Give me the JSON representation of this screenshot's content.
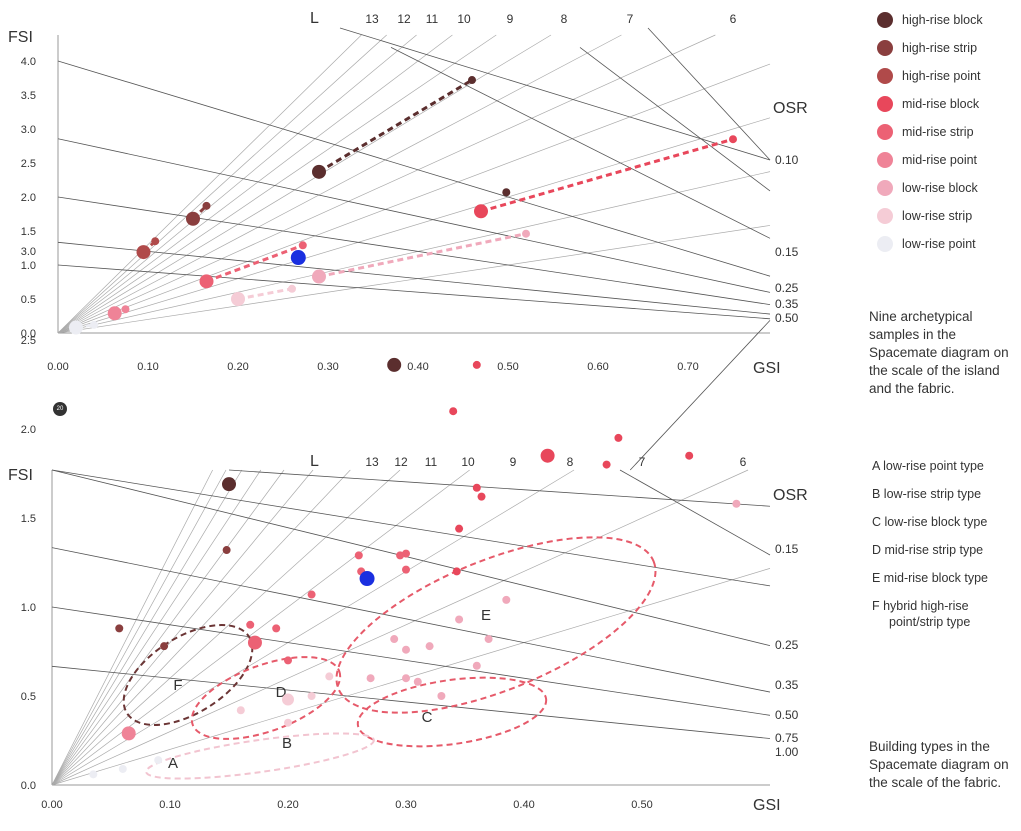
{
  "page_badge": "20",
  "top_note": "Nine archetypical samples in the Spacemate diagram on the scale of the island and the fabric.",
  "bottom_note": "Building types in the Spacemate diagram on the scale of the fabric.",
  "legend": [
    {
      "label": "high-rise block",
      "color": "#5b2e2e"
    },
    {
      "label": "high-rise strip",
      "color": "#8a3e3e"
    },
    {
      "label": "high-rise point",
      "color": "#b04a4a"
    },
    {
      "label": "mid-rise block",
      "color": "#e8475b"
    },
    {
      "label": "mid-rise strip",
      "color": "#ec6174"
    },
    {
      "label": "mid-rise point",
      "color": "#ef8397"
    },
    {
      "label": "low-rise block",
      "color": "#f0a9bb"
    },
    {
      "label": "low-rise strip",
      "color": "#f5ccd6"
    },
    {
      "label": "low-rise point",
      "color": "#ecedf3"
    }
  ],
  "type_legend": [
    "A  low-rise point type",
    "B  low-rise strip type",
    "C  low-rise block type",
    "D  mid-rise strip type",
    "E  mid-rise block type",
    "F  hybrid high-rise point/strip type"
  ],
  "chart_data": [
    {
      "type": "scatter",
      "title": "",
      "xlabel": "GSI",
      "ylabel": "FSI",
      "xlim": [
        0,
        0.8
      ],
      "ylim": [
        0,
        4.2
      ],
      "x_ticks": [
        "0.00",
        "0.10",
        "0.20",
        "0.30",
        "0.40",
        "0.50",
        "0.60",
        "0.70"
      ],
      "y_ticks": [
        "0.0",
        "0.5",
        "1.0",
        "1.5",
        "2.0",
        "2.5",
        "3.0",
        "3.5",
        "4.0"
      ],
      "L_label": "L",
      "L_values": [
        "13",
        "12",
        "11",
        "10",
        "9",
        "8",
        "7",
        "6"
      ],
      "OSR_label": "OSR",
      "OSR_values": [
        "0.10",
        "0.15",
        "0.25",
        "0.35",
        "0.50"
      ],
      "series": [
        {
          "name": "high-rise block",
          "points": [
            [
              0.29,
              2.37
            ],
            [
              0.46,
              3.72
            ]
          ]
        },
        {
          "name": "high-rise strip",
          "points": [
            [
              0.15,
              1.68
            ],
            [
              0.165,
              1.87
            ]
          ]
        },
        {
          "name": "high-rise point",
          "points": [
            [
              0.095,
              1.19
            ],
            [
              0.108,
              1.35
            ]
          ]
        },
        {
          "name": "mid-rise block",
          "points": [
            [
              0.47,
              1.79
            ],
            [
              0.75,
              2.85
            ]
          ]
        },
        {
          "name": "mid-rise strip",
          "points": [
            [
              0.165,
              0.76
            ],
            [
              0.272,
              1.29
            ]
          ]
        },
        {
          "name": "mid-rise point",
          "points": [
            [
              0.063,
              0.29
            ],
            [
              0.075,
              0.35
            ]
          ]
        },
        {
          "name": "low-rise block",
          "points": [
            [
              0.29,
              0.83
            ],
            [
              0.52,
              1.46
            ]
          ]
        },
        {
          "name": "low-rise strip",
          "points": [
            [
              0.2,
              0.5
            ],
            [
              0.26,
              0.65
            ]
          ]
        },
        {
          "name": "low-rise point",
          "points": [
            [
              0.02,
              0.08
            ],
            [
              0.04,
              0.12
            ]
          ]
        }
      ],
      "highlight": [
        [
          0.267,
          1.11
        ]
      ]
    },
    {
      "type": "scatter",
      "title": "",
      "xlabel": "GSI",
      "ylabel": "FSI",
      "xlim": [
        0,
        0.6
      ],
      "ylim": [
        0,
        3.4
      ],
      "x_ticks": [
        "0.00",
        "0.10",
        "0.20",
        "0.30",
        "0.40",
        "0.50"
      ],
      "y_ticks": [
        "0.0",
        "0.5",
        "1.0",
        "1.5",
        "2.0",
        "2.5",
        "3.0"
      ],
      "L_label": "L",
      "L_values": [
        "13",
        "12",
        "11",
        "10",
        "9",
        "8",
        "7",
        "6"
      ],
      "OSR_label": "OSR",
      "OSR_values": [
        "0.15",
        "0.25",
        "0.35",
        "0.50",
        "0.75",
        "1.00"
      ],
      "groups": [
        "A",
        "B",
        "C",
        "D",
        "E",
        "F"
      ],
      "points": [
        {
          "x": 0.385,
          "y": 3.33,
          "cat": "high-rise block",
          "r": 4
        },
        {
          "x": 0.29,
          "y": 2.36,
          "cat": "high-rise block",
          "r": 7
        },
        {
          "x": 0.15,
          "y": 1.69,
          "cat": "high-rise block",
          "r": 7
        },
        {
          "x": 0.148,
          "y": 1.32,
          "cat": "high-rise strip",
          "r": 4
        },
        {
          "x": 0.095,
          "y": 0.78,
          "cat": "high-rise strip",
          "r": 4
        },
        {
          "x": 0.057,
          "y": 0.88,
          "cat": "high-rise strip",
          "r": 4
        },
        {
          "x": 0.065,
          "y": 0.29,
          "cat": "mid-rise point",
          "r": 7
        },
        {
          "x": 0.54,
          "y": 1.85,
          "cat": "mid-rise block",
          "r": 4
        },
        {
          "x": 0.48,
          "y": 1.95,
          "cat": "mid-rise block",
          "r": 4
        },
        {
          "x": 0.47,
          "y": 1.8,
          "cat": "mid-rise block",
          "r": 4
        },
        {
          "x": 0.42,
          "y": 1.85,
          "cat": "mid-rise block",
          "r": 7
        },
        {
          "x": 0.36,
          "y": 2.36,
          "cat": "mid-rise block",
          "r": 4
        },
        {
          "x": 0.34,
          "y": 2.1,
          "cat": "mid-rise block",
          "r": 4
        },
        {
          "x": 0.36,
          "y": 1.67,
          "cat": "mid-rise block",
          "r": 4
        },
        {
          "x": 0.364,
          "y": 1.62,
          "cat": "mid-rise block",
          "r": 4
        },
        {
          "x": 0.345,
          "y": 1.44,
          "cat": "mid-rise block",
          "r": 4
        },
        {
          "x": 0.343,
          "y": 1.2,
          "cat": "mid-rise block",
          "r": 4
        },
        {
          "x": 0.3,
          "y": 1.3,
          "cat": "mid-rise strip",
          "r": 4
        },
        {
          "x": 0.295,
          "y": 1.29,
          "cat": "mid-rise strip",
          "r": 4
        },
        {
          "x": 0.3,
          "y": 1.21,
          "cat": "mid-rise strip",
          "r": 4
        },
        {
          "x": 0.26,
          "y": 1.29,
          "cat": "mid-rise strip",
          "r": 4
        },
        {
          "x": 0.262,
          "y": 1.2,
          "cat": "mid-rise strip",
          "r": 4
        },
        {
          "x": 0.22,
          "y": 1.07,
          "cat": "mid-rise strip",
          "r": 4
        },
        {
          "x": 0.19,
          "y": 0.88,
          "cat": "mid-rise strip",
          "r": 4
        },
        {
          "x": 0.168,
          "y": 0.9,
          "cat": "mid-rise strip",
          "r": 4
        },
        {
          "x": 0.172,
          "y": 0.8,
          "cat": "mid-rise strip",
          "r": 7
        },
        {
          "x": 0.2,
          "y": 0.7,
          "cat": "mid-rise strip",
          "r": 4
        },
        {
          "x": 0.58,
          "y": 1.58,
          "cat": "low-rise block",
          "r": 4
        },
        {
          "x": 0.385,
          "y": 1.04,
          "cat": "low-rise block",
          "r": 4
        },
        {
          "x": 0.345,
          "y": 0.93,
          "cat": "low-rise block",
          "r": 4
        },
        {
          "x": 0.37,
          "y": 0.82,
          "cat": "low-rise block",
          "r": 4
        },
        {
          "x": 0.29,
          "y": 0.82,
          "cat": "low-rise block",
          "r": 4
        },
        {
          "x": 0.3,
          "y": 0.76,
          "cat": "low-rise block",
          "r": 4
        },
        {
          "x": 0.32,
          "y": 0.78,
          "cat": "low-rise block",
          "r": 4
        },
        {
          "x": 0.36,
          "y": 0.67,
          "cat": "low-rise block",
          "r": 4
        },
        {
          "x": 0.3,
          "y": 0.6,
          "cat": "low-rise block",
          "r": 4
        },
        {
          "x": 0.31,
          "y": 0.58,
          "cat": "low-rise block",
          "r": 4
        },
        {
          "x": 0.27,
          "y": 0.6,
          "cat": "low-rise block",
          "r": 4
        },
        {
          "x": 0.33,
          "y": 0.5,
          "cat": "low-rise block",
          "r": 4
        },
        {
          "x": 0.22,
          "y": 0.5,
          "cat": "low-rise strip",
          "r": 4
        },
        {
          "x": 0.235,
          "y": 0.61,
          "cat": "low-rise strip",
          "r": 4
        },
        {
          "x": 0.2,
          "y": 0.48,
          "cat": "low-rise strip",
          "r": 6
        },
        {
          "x": 0.16,
          "y": 0.42,
          "cat": "low-rise strip",
          "r": 4
        },
        {
          "x": 0.2,
          "y": 0.35,
          "cat": "low-rise strip",
          "r": 4
        },
        {
          "x": 0.09,
          "y": 0.14,
          "cat": "low-rise point",
          "r": 4
        },
        {
          "x": 0.06,
          "y": 0.09,
          "cat": "low-rise point",
          "r": 4
        },
        {
          "x": 0.035,
          "y": 0.06,
          "cat": "low-rise point",
          "r": 4
        }
      ],
      "highlight": [
        [
          0.267,
          1.16
        ]
      ]
    }
  ]
}
